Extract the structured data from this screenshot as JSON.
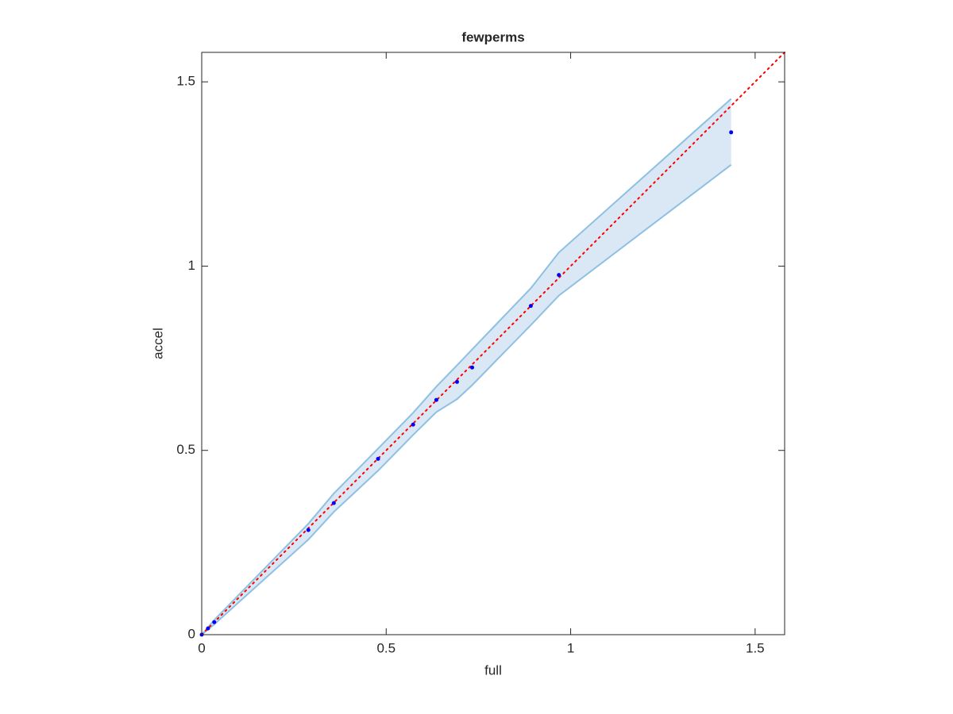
{
  "chart_data": {
    "type": "scatter",
    "title": "fewperms",
    "xlabel": "full",
    "ylabel": "accel",
    "x": [
      0,
      0.017,
      0.034,
      0.289,
      0.358,
      0.478,
      0.573,
      0.636,
      0.692,
      0.733,
      0.892,
      0.968,
      1.435
    ],
    "y": [
      0,
      0.017,
      0.034,
      0.284,
      0.357,
      0.477,
      0.57,
      0.637,
      0.686,
      0.725,
      0.892,
      0.976,
      1.363
    ],
    "band_upper": [
      0,
      0.02,
      0.04,
      0.301,
      0.383,
      0.505,
      0.602,
      0.673,
      0.731,
      0.774,
      0.94,
      1.037,
      1.454
    ],
    "band_lower": [
      0,
      0.014,
      0.028,
      0.258,
      0.333,
      0.445,
      0.542,
      0.604,
      0.639,
      0.677,
      0.84,
      0.92,
      1.275
    ],
    "color": "#0000ff",
    "band_color": "#d9e8f4",
    "band_edge_color": "#8ec0e2",
    "reference_line": {
      "x": [
        0,
        1.58
      ],
      "y": [
        0,
        1.58
      ],
      "color": "#ff0000"
    },
    "xlim": [
      0,
      1.58
    ],
    "ylim": [
      0,
      1.58
    ],
    "xticks": [
      0,
      0.5,
      1,
      1.5
    ],
    "yticks": [
      0,
      0.5,
      1,
      1.5
    ]
  }
}
